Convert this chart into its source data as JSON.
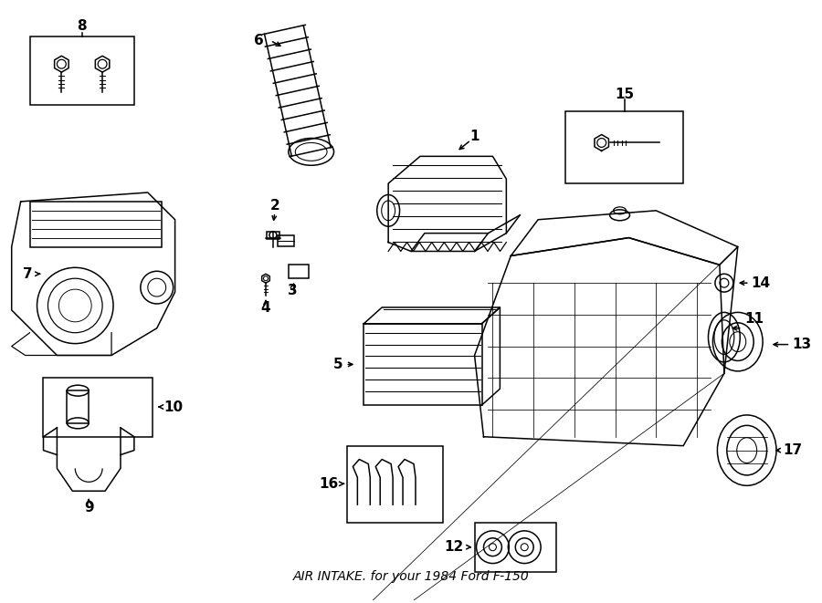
{
  "title": "AIR INTAKE.",
  "subtitle": "for your 1984 Ford F-150",
  "bg_color": "#ffffff",
  "line_color": "#000000",
  "text_color": "#000000",
  "fig_width": 9.0,
  "fig_height": 6.61
}
